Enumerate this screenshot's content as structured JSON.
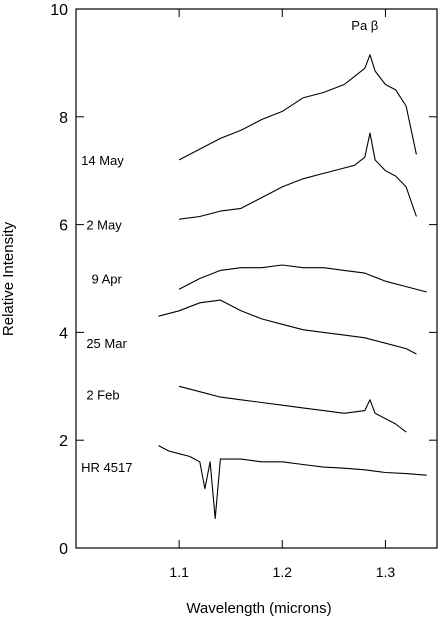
{
  "chart_data": {
    "type": "line",
    "title": "",
    "xlabel": "Wavelength (microns)",
    "ylabel": "Relative Intensity",
    "xlim": [
      1.0,
      1.35
    ],
    "ylim": [
      0,
      10
    ],
    "grid": false,
    "legend": "none",
    "x_ticks": [
      1.1,
      1.2,
      1.3
    ],
    "y_ticks": [
      0,
      2,
      4,
      6,
      8,
      10
    ],
    "x_tick_labels": [
      "1.1",
      "1.2",
      "1.3"
    ],
    "y_tick_labels": [
      "0",
      "2",
      "4",
      "6",
      "8",
      "10"
    ],
    "line_color": "#000000",
    "annotations": [
      {
        "text": "Pa β",
        "x": 1.28,
        "y": 9.7
      }
    ],
    "series": [
      {
        "name": "14 May",
        "label": {
          "x": 1.005,
          "y": 7.2
        },
        "x": [
          1.1,
          1.12,
          1.14,
          1.16,
          1.18,
          1.2,
          1.22,
          1.24,
          1.26,
          1.27,
          1.28,
          1.285,
          1.29,
          1.3,
          1.31,
          1.32,
          1.33
        ],
        "y": [
          7.2,
          7.4,
          7.6,
          7.75,
          7.95,
          8.1,
          8.35,
          8.45,
          8.6,
          8.75,
          8.9,
          9.15,
          8.85,
          8.6,
          8.5,
          8.2,
          7.3
        ]
      },
      {
        "name": "2 May",
        "label": {
          "x": 1.01,
          "y": 6.0
        },
        "x": [
          1.1,
          1.12,
          1.14,
          1.16,
          1.18,
          1.2,
          1.22,
          1.24,
          1.26,
          1.27,
          1.28,
          1.285,
          1.29,
          1.3,
          1.31,
          1.32,
          1.33
        ],
        "y": [
          6.1,
          6.15,
          6.25,
          6.3,
          6.5,
          6.7,
          6.85,
          6.95,
          7.05,
          7.1,
          7.25,
          7.7,
          7.2,
          7.0,
          6.9,
          6.7,
          6.15
        ]
      },
      {
        "name": "9 Apr",
        "label": {
          "x": 1.015,
          "y": 5.0
        },
        "x": [
          1.1,
          1.12,
          1.14,
          1.16,
          1.18,
          1.2,
          1.22,
          1.24,
          1.26,
          1.28,
          1.3,
          1.32,
          1.34
        ],
        "y": [
          4.8,
          5.0,
          5.15,
          5.2,
          5.2,
          5.25,
          5.2,
          5.2,
          5.15,
          5.1,
          4.95,
          4.85,
          4.75
        ]
      },
      {
        "name": "25 Mar",
        "label": {
          "x": 1.01,
          "y": 3.8
        },
        "x": [
          1.08,
          1.1,
          1.12,
          1.14,
          1.16,
          1.18,
          1.2,
          1.22,
          1.24,
          1.26,
          1.28,
          1.3,
          1.32,
          1.33
        ],
        "y": [
          4.3,
          4.4,
          4.55,
          4.6,
          4.4,
          4.25,
          4.15,
          4.05,
          4.0,
          3.95,
          3.9,
          3.8,
          3.7,
          3.6
        ]
      },
      {
        "name": "2 Feb",
        "label": {
          "x": 1.01,
          "y": 2.85
        },
        "x": [
          1.1,
          1.12,
          1.14,
          1.16,
          1.18,
          1.2,
          1.22,
          1.24,
          1.26,
          1.28,
          1.285,
          1.29,
          1.3,
          1.31,
          1.32
        ],
        "y": [
          3.0,
          2.9,
          2.8,
          2.75,
          2.7,
          2.65,
          2.6,
          2.55,
          2.5,
          2.55,
          2.75,
          2.5,
          2.4,
          2.3,
          2.15
        ]
      },
      {
        "name": "HR 4517",
        "label": {
          "x": 1.005,
          "y": 1.5
        },
        "x": [
          1.08,
          1.09,
          1.1,
          1.11,
          1.12,
          1.125,
          1.13,
          1.135,
          1.14,
          1.16,
          1.18,
          1.2,
          1.22,
          1.24,
          1.26,
          1.28,
          1.3,
          1.32,
          1.34
        ],
        "y": [
          1.9,
          1.8,
          1.75,
          1.7,
          1.6,
          1.1,
          1.6,
          0.55,
          1.65,
          1.65,
          1.6,
          1.6,
          1.55,
          1.5,
          1.48,
          1.45,
          1.4,
          1.38,
          1.35
        ]
      }
    ]
  }
}
